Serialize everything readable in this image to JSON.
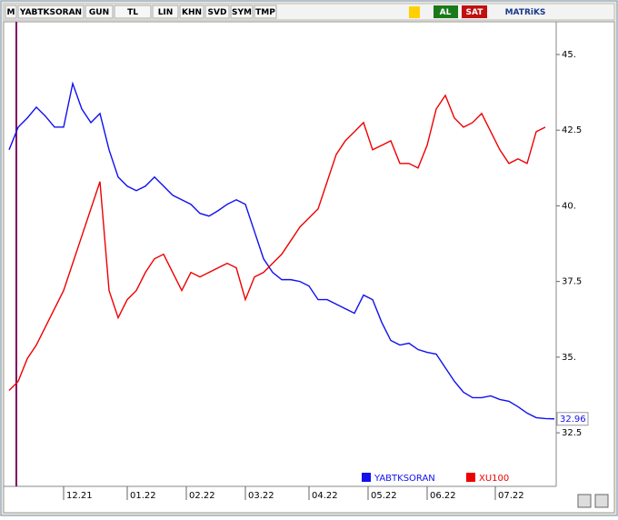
{
  "toolbar": {
    "items": [
      "M",
      "YABTKSORAN",
      "GUN",
      "TL",
      "LIN",
      "KHN",
      "SVD",
      "SYM",
      "TMP"
    ],
    "buy": "AL",
    "sell": "SAT",
    "brand": "MATRiKS"
  },
  "chart_data": {
    "type": "line",
    "x": [
      0,
      2,
      4,
      6,
      8,
      10,
      12,
      14,
      16,
      18,
      20,
      22,
      24,
      26,
      28,
      30,
      32,
      34,
      36,
      38,
      40,
      42,
      44,
      46,
      48,
      50,
      52,
      54,
      56,
      58,
      60,
      62,
      64,
      66,
      68,
      70,
      72,
      74,
      76,
      78,
      80,
      82,
      84,
      86,
      88,
      90,
      92,
      94,
      96,
      98,
      100,
      102,
      104,
      106,
      108,
      110,
      112,
      114,
      116,
      118,
      120
    ],
    "xlim": [
      -0.4,
      120.4
    ],
    "xticks": [
      {
        "value": 12,
        "label": "12.21"
      },
      {
        "value": 26,
        "label": "01.22"
      },
      {
        "value": 39,
        "label": "02.22"
      },
      {
        "value": 52,
        "label": "03.22"
      },
      {
        "value": 66,
        "label": "04.22"
      },
      {
        "value": 79,
        "label": "05.22"
      },
      {
        "value": 92,
        "label": "06.22"
      },
      {
        "value": 107,
        "label": "07.22"
      }
    ],
    "ylim": [
      30.82,
      46.14
    ],
    "yticks": [
      {
        "value": 45,
        "label": "45."
      },
      42.5,
      {
        "value": 40,
        "label": "40."
      },
      37.5,
      {
        "value": 35,
        "label": "35."
      },
      32.5
    ],
    "series": [
      {
        "name": "YABTKSORAN",
        "color": "#1010f0",
        "last_label": "32.96",
        "values": [
          41.85,
          42.6,
          42.9,
          43.26,
          42.96,
          42.6,
          42.6,
          44.04,
          43.2,
          42.75,
          43.05,
          41.85,
          40.95,
          40.65,
          40.5,
          40.65,
          40.95,
          40.65,
          40.35,
          40.2,
          40.05,
          39.75,
          39.66,
          39.84,
          40.05,
          40.2,
          40.05,
          39.15,
          38.25,
          37.8,
          37.56,
          37.56,
          37.5,
          37.35,
          36.9,
          36.9,
          36.75,
          36.6,
          36.45,
          37.05,
          36.9,
          36.15,
          35.55,
          35.4,
          35.46,
          35.25,
          35.16,
          35.1,
          34.65,
          34.2,
          33.84,
          33.66,
          33.66,
          33.72,
          33.6,
          33.54,
          33.36,
          33.15,
          33.0,
          32.97,
          32.96
        ]
      },
      {
        "name": "XU100",
        "color": "#ee0000",
        "values": [
          33.9,
          34.2,
          34.95,
          35.4,
          36,
          36.6,
          37.2,
          38.1,
          39,
          39.9,
          40.8,
          37.2,
          36.3,
          36.9,
          37.2,
          37.8,
          38.25,
          38.4,
          37.8,
          37.2,
          37.8,
          37.65,
          37.8,
          37.95,
          38.1,
          37.95,
          36.9,
          37.65,
          37.8,
          38.1,
          38.4,
          38.85,
          39.3,
          39.6,
          39.9,
          40.8,
          41.7,
          42.15,
          42.45,
          42.75,
          41.85,
          42,
          42.15,
          41.4,
          41.4,
          41.25,
          42,
          43.2,
          43.65,
          42.9,
          42.6,
          42.75,
          43.05,
          42.45,
          41.85,
          41.4,
          41.55,
          41.4,
          42.45,
          42.6,
          null
        ]
      }
    ]
  }
}
